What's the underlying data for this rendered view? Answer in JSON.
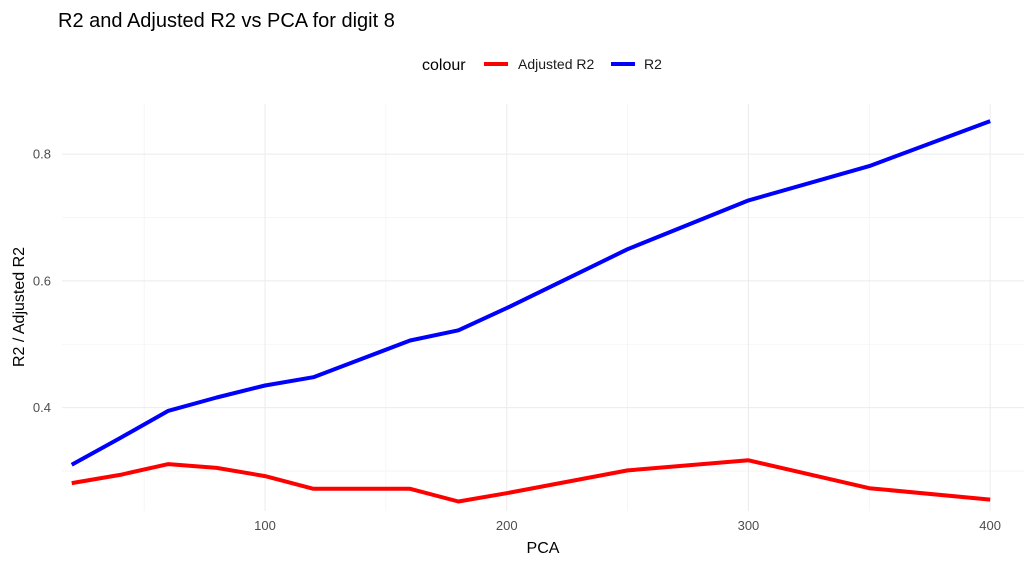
{
  "chart_data": {
    "type": "line",
    "title": "R2 and Adjusted R2 vs PCA for digit 8",
    "xlabel": "PCA",
    "ylabel": "R2 / Adjusted R2",
    "legend_title": "colour",
    "legend_position": "top",
    "grid": true,
    "xlim": [
      16,
      414
    ],
    "ylim": [
      0.237,
      0.879
    ],
    "x_ticks": [
      100,
      200,
      300,
      400
    ],
    "y_ticks": [
      0.4,
      0.6,
      0.8
    ],
    "x": [
      20,
      40,
      60,
      80,
      100,
      120,
      140,
      160,
      180,
      200,
      250,
      300,
      350,
      400
    ],
    "series": [
      {
        "name": "Adjusted R2",
        "color": "#ff0000",
        "values": [
          0.281,
          0.294,
          0.311,
          0.305,
          0.292,
          0.272,
          0.272,
          0.272,
          0.252,
          0.265,
          0.301,
          0.317,
          0.273,
          0.255
        ]
      },
      {
        "name": "R2",
        "color": "#0000ff",
        "values": [
          0.31,
          0.352,
          0.395,
          0.416,
          0.435,
          0.448,
          0.477,
          0.506,
          0.522,
          0.557,
          0.65,
          0.727,
          0.781,
          0.852
        ]
      }
    ]
  }
}
